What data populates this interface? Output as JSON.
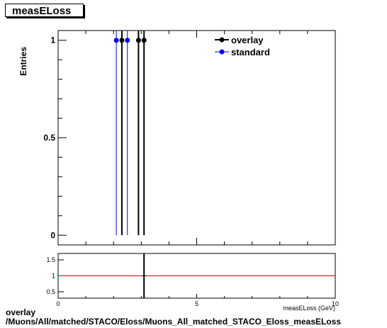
{
  "title": "measELoss",
  "chart_data": [
    {
      "type": "scatter",
      "ylabel": "Entries",
      "xlim": [
        0,
        10
      ],
      "ylim": [
        -0.05,
        1.05
      ],
      "yticks": [
        {
          "v": 0,
          "label": "0"
        },
        {
          "v": 0.5,
          "label": "0.5"
        },
        {
          "v": 1,
          "label": "1"
        }
      ],
      "legend": {
        "placement": "top-right"
      },
      "series": [
        {
          "name": "overlay",
          "color": "#000000",
          "line_width": 2,
          "points": [
            {
              "x": 2.3,
              "y": 1
            },
            {
              "x": 2.9,
              "y": 1
            },
            {
              "x": 3.1,
              "y": 1
            }
          ]
        },
        {
          "name": "standard",
          "color": "#0000ff",
          "line_width": 1,
          "points": [
            {
              "x": 2.1,
              "y": 1
            },
            {
              "x": 2.5,
              "y": 1
            }
          ]
        }
      ]
    },
    {
      "type": "line",
      "xlabel": "measELoss (GeV)",
      "xlim": [
        0,
        10
      ],
      "ylim": [
        0.3,
        1.7
      ],
      "xticks": [
        {
          "v": 0,
          "label": "0"
        },
        {
          "v": 5,
          "label": "5"
        },
        {
          "v": 10,
          "label": "10"
        }
      ],
      "yticks": [
        {
          "v": 0.5,
          "label": "0.5"
        },
        {
          "v": 1,
          "label": "1"
        },
        {
          "v": 1.5,
          "label": "1.5"
        }
      ],
      "reference_line": {
        "y": 1,
        "color": "#cc0000"
      },
      "points": [
        {
          "x": 3.1,
          "y": 1
        }
      ]
    }
  ],
  "footer": {
    "line1": "overlay",
    "line2": "/Muons/All/matched/STACO/Eloss/Muons_All_matched_STACO_Eloss_measELoss"
  }
}
